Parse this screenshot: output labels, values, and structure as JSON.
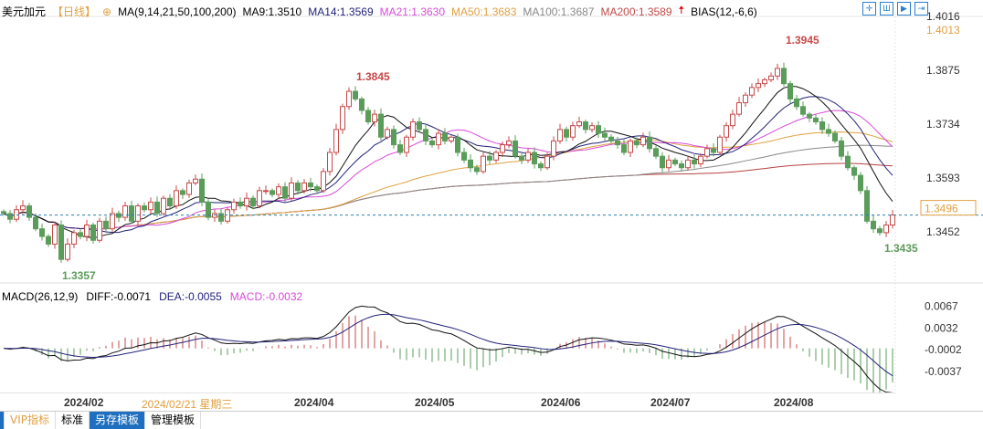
{
  "header": {
    "symbol": "美元加元",
    "period": "【日线】",
    "ma_label": "MA(9,14,21,50,100,200)",
    "ma9": "MA9:1.3510",
    "ma14": "MA14:1.3569",
    "ma21": "MA21:1.3630",
    "ma50": "MA50:1.3683",
    "ma100": "MA100:1.3687",
    "ma200": "MA200:1.3589",
    "bias": "BIAS(12,-6,6)"
  },
  "colors": {
    "up": "#c84848",
    "down": "#5a9c5a",
    "ma9": "#111111",
    "ma14": "#22227a",
    "ma21": "#d84ad8",
    "ma50": "#e0a040",
    "ma100": "#888888",
    "ma200": "#b84040",
    "current": "#2a7fb0"
  },
  "macd_header": {
    "label": "MACD(26,12,9)",
    "diff": "DIFF:-0.0071",
    "dea": "DEA:-0.0055",
    "macd": "MACD:-0.0032"
  },
  "dates": {
    "feb": "2024/02",
    "cursor": "2024/02/21 星期三",
    "apr": "2024/04",
    "may": "2024/05",
    "jun": "2024/06",
    "jul": "2024/07",
    "aug": "2024/08"
  },
  "tabs": {
    "vip": "VIP指标",
    "standard": "标准",
    "save": "另存模板",
    "manage": "管理模板"
  },
  "chart_data": {
    "type": "candlestick",
    "price_ticks": [
      "1.4016",
      "1.3875",
      "1.3734",
      "1.3593",
      "1.3452"
    ],
    "ylim": [
      1.34,
      1.403
    ],
    "macd_ticks": [
      "0.0067",
      "0.0032",
      "-0.0002",
      "-0.0037"
    ],
    "top_label": "1.4013",
    "current_price": "1.3496",
    "annotations": {
      "high": "1.3945",
      "high2": "1.3845",
      "low": "1.3357",
      "low2": "1.3435"
    },
    "closes": [
      1.35,
      1.3485,
      1.351,
      1.352,
      1.349,
      1.346,
      1.344,
      1.342,
      1.347,
      1.338,
      1.342,
      1.345,
      1.344,
      1.347,
      1.343,
      1.348,
      1.346,
      1.35,
      1.349,
      1.352,
      1.348,
      1.352,
      1.351,
      1.353,
      1.35,
      1.354,
      1.352,
      1.356,
      1.355,
      1.358,
      1.359,
      1.353,
      1.349,
      1.35,
      1.348,
      1.351,
      1.353,
      1.352,
      1.354,
      1.352,
      1.356,
      1.356,
      1.355,
      1.357,
      1.354,
      1.358,
      1.356,
      1.358,
      1.357,
      1.356,
      1.361,
      1.366,
      1.372,
      1.378,
      1.382,
      1.38,
      1.377,
      1.374,
      1.376,
      1.37,
      1.372,
      1.368,
      1.366,
      1.37,
      1.374,
      1.372,
      1.369,
      1.368,
      1.371,
      1.369,
      1.37,
      1.366,
      1.364,
      1.362,
      1.361,
      1.365,
      1.364,
      1.366,
      1.368,
      1.369,
      1.365,
      1.364,
      1.366,
      1.363,
      1.362,
      1.365,
      1.369,
      1.372,
      1.37,
      1.373,
      1.374,
      1.372,
      1.373,
      1.371,
      1.37,
      1.369,
      1.368,
      1.366,
      1.369,
      1.368,
      1.37,
      1.367,
      1.365,
      1.362,
      1.364,
      1.363,
      1.362,
      1.364,
      1.363,
      1.365,
      1.367,
      1.366,
      1.37,
      1.373,
      1.376,
      1.379,
      1.381,
      1.383,
      1.384,
      1.385,
      1.386,
      1.388,
      1.384,
      1.38,
      1.378,
      1.376,
      1.375,
      1.374,
      1.372,
      1.371,
      1.369,
      1.365,
      1.362,
      1.36,
      1.356,
      1.348,
      1.346,
      1.345,
      1.347,
      1.3496
    ]
  }
}
